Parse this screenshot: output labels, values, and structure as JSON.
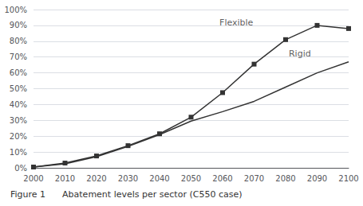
{
  "chart_data": {
    "type": "line",
    "title": "Figure 1      Abatement levels per sector (C550 case)",
    "x": [
      2000,
      2010,
      2020,
      2030,
      2040,
      2050,
      2060,
      2070,
      2080,
      2090,
      2100
    ],
    "series": [
      {
        "name": "Flexible",
        "color": "#333333",
        "marker": "square",
        "values": [
          0.005,
          0.03,
          0.075,
          0.14,
          0.215,
          0.32,
          0.475,
          0.655,
          0.81,
          0.9,
          0.88
        ]
      },
      {
        "name": "Rigid",
        "color": "#333333",
        "marker": "none",
        "values": [
          0.005,
          0.025,
          0.07,
          0.135,
          0.21,
          0.295,
          0.355,
          0.42,
          0.51,
          0.6,
          0.67
        ]
      }
    ],
    "annotations": [
      {
        "text": "Flexible",
        "x": 2059,
        "y": 0.915
      },
      {
        "text": "Rigid",
        "x": 2081,
        "y": 0.72
      }
    ],
    "xlim": [
      2000,
      2100
    ],
    "xticks": [
      2000,
      2010,
      2020,
      2030,
      2040,
      2050,
      2060,
      2070,
      2080,
      2090,
      2100
    ],
    "ylim": [
      0.0,
      1.0
    ],
    "yticks": [
      {
        "value": 0.0,
        "label": "0%"
      },
      {
        "value": 0.1,
        "label": "10%"
      },
      {
        "value": 0.2,
        "label": "20%"
      },
      {
        "value": 0.3,
        "label": "30%"
      },
      {
        "value": 0.4,
        "label": "40%"
      },
      {
        "value": 0.5,
        "label": "50%"
      },
      {
        "value": 0.6,
        "label": "60%"
      },
      {
        "value": 0.7,
        "label": "70%"
      },
      {
        "value": 0.8,
        "label": "80%"
      },
      {
        "value": 0.9,
        "label": "90%"
      },
      {
        "value": 1.0,
        "label": "100%"
      }
    ],
    "grid": true
  }
}
